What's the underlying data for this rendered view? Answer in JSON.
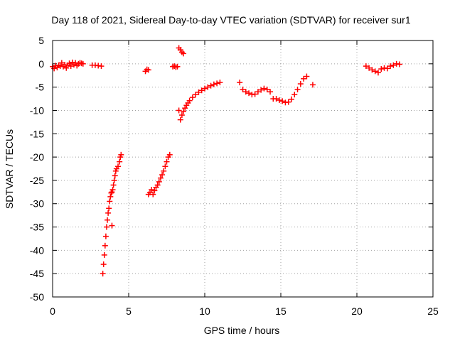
{
  "chart_data": {
    "type": "scatter",
    "title": "Day 118 of 2021, Sidereal Day-to-day VTEC variation (SDTVAR) for receiver sur1",
    "xlabel": "GPS time / hours",
    "ylabel": "SDTVAR / TECUs",
    "xlim": [
      0,
      25
    ],
    "ylim": [
      -50,
      5
    ],
    "xticks": [
      0,
      5,
      10,
      15,
      20,
      25
    ],
    "yticks": [
      5,
      0,
      -5,
      -10,
      -15,
      -20,
      -25,
      -30,
      -35,
      -40,
      -45,
      -50
    ],
    "grid": true,
    "marker": "+",
    "colors": {
      "series": "#ff0000",
      "grid": "#a0a0a0",
      "axis": "#000000"
    },
    "series": [
      {
        "points": [
          [
            0.0,
            -0.6
          ],
          [
            0.1,
            -1.0
          ],
          [
            0.2,
            -0.4
          ],
          [
            0.3,
            -0.8
          ],
          [
            0.4,
            -0.3
          ],
          [
            0.5,
            -0.5
          ],
          [
            0.6,
            0.2
          ],
          [
            0.7,
            -0.6
          ],
          [
            0.8,
            -0.2
          ],
          [
            0.9,
            -0.9
          ],
          [
            1.0,
            -0.3
          ],
          [
            1.1,
            0.1
          ],
          [
            1.2,
            -0.5
          ],
          [
            1.3,
            0.3
          ],
          [
            1.4,
            -0.2
          ],
          [
            1.5,
            0.2
          ],
          [
            1.6,
            -0.4
          ],
          [
            1.7,
            0.0
          ],
          [
            1.8,
            0.2
          ],
          [
            1.9,
            0.1
          ],
          [
            2.0,
            0.0
          ],
          [
            2.6,
            -0.3
          ],
          [
            2.8,
            -0.3
          ],
          [
            3.0,
            -0.4
          ],
          [
            3.2,
            -0.5
          ]
        ]
      },
      {
        "points": [
          [
            3.3,
            -45.0
          ],
          [
            3.35,
            -43.0
          ],
          [
            3.4,
            -41.0
          ],
          [
            3.45,
            -39.0
          ],
          [
            3.5,
            -37.0
          ],
          [
            3.55,
            -35.0
          ],
          [
            3.6,
            -33.5
          ],
          [
            3.65,
            -32.0
          ],
          [
            3.7,
            -31.0
          ],
          [
            3.75,
            -29.5
          ],
          [
            3.8,
            -28.5
          ],
          [
            3.85,
            -27.7
          ],
          [
            3.9,
            -27.5
          ],
          [
            3.95,
            -27.0
          ],
          [
            4.0,
            -26.0
          ],
          [
            4.05,
            -25.0
          ],
          [
            4.1,
            -24.0
          ],
          [
            4.15,
            -23.0
          ],
          [
            4.2,
            -22.5
          ],
          [
            4.3,
            -22.0
          ],
          [
            4.4,
            -21.0
          ],
          [
            4.45,
            -20.0
          ],
          [
            4.5,
            -19.5
          ],
          [
            3.9,
            -34.7
          ]
        ]
      },
      {
        "points": [
          [
            6.1,
            -1.6
          ],
          [
            6.2,
            -1.2
          ],
          [
            6.3,
            -1.3
          ]
        ]
      },
      {
        "points": [
          [
            6.3,
            -28.0
          ],
          [
            6.4,
            -27.6
          ],
          [
            6.5,
            -27.0
          ],
          [
            6.6,
            -28.0
          ],
          [
            6.7,
            -27.2
          ],
          [
            6.8,
            -26.5
          ],
          [
            6.9,
            -26.0
          ],
          [
            7.0,
            -25.3
          ],
          [
            7.1,
            -24.5
          ],
          [
            7.2,
            -23.8
          ],
          [
            7.3,
            -23.0
          ],
          [
            7.4,
            -22.0
          ],
          [
            7.5,
            -21.0
          ],
          [
            7.6,
            -20.0
          ],
          [
            7.7,
            -19.5
          ]
        ]
      },
      {
        "points": [
          [
            7.9,
            -0.6
          ],
          [
            8.0,
            -0.5
          ],
          [
            8.1,
            -0.7
          ],
          [
            8.2,
            -0.6
          ],
          [
            8.3,
            3.4
          ],
          [
            8.4,
            3.0
          ],
          [
            8.5,
            2.5
          ],
          [
            8.6,
            2.2
          ]
        ]
      },
      {
        "points": [
          [
            8.3,
            -10.0
          ],
          [
            8.4,
            -12.0
          ],
          [
            8.5,
            -11.0
          ],
          [
            8.6,
            -10.2
          ],
          [
            8.7,
            -9.5
          ],
          [
            8.8,
            -8.9
          ],
          [
            8.9,
            -8.4
          ],
          [
            9.0,
            -7.9
          ],
          [
            9.2,
            -7.2
          ],
          [
            9.4,
            -6.6
          ],
          [
            9.6,
            -6.1
          ],
          [
            9.8,
            -5.7
          ],
          [
            10.0,
            -5.3
          ],
          [
            10.2,
            -5.0
          ],
          [
            10.4,
            -4.7
          ],
          [
            10.6,
            -4.4
          ],
          [
            10.8,
            -4.2
          ],
          [
            11.0,
            -4.0
          ]
        ]
      },
      {
        "points": [
          [
            12.3,
            -4.0
          ],
          [
            12.5,
            -5.5
          ],
          [
            12.7,
            -6.0
          ],
          [
            12.9,
            -6.3
          ],
          [
            13.1,
            -6.6
          ],
          [
            13.3,
            -6.5
          ],
          [
            13.5,
            -6.0
          ],
          [
            13.7,
            -5.6
          ],
          [
            13.9,
            -5.3
          ],
          [
            14.1,
            -5.5
          ],
          [
            14.3,
            -6.0
          ],
          [
            14.5,
            -7.5
          ],
          [
            14.7,
            -7.5
          ],
          [
            14.9,
            -7.8
          ],
          [
            15.1,
            -8.0
          ],
          [
            15.3,
            -8.3
          ],
          [
            15.5,
            -8.2
          ],
          [
            15.7,
            -7.6
          ],
          [
            15.9,
            -6.6
          ],
          [
            16.1,
            -5.5
          ],
          [
            16.3,
            -4.3
          ],
          [
            16.5,
            -3.2
          ],
          [
            16.7,
            -2.7
          ],
          [
            17.1,
            -4.5
          ]
        ]
      },
      {
        "points": [
          [
            20.6,
            -0.5
          ],
          [
            20.8,
            -0.9
          ],
          [
            21.0,
            -1.3
          ],
          [
            21.2,
            -1.6
          ],
          [
            21.4,
            -1.9
          ],
          [
            21.6,
            -1.1
          ],
          [
            21.8,
            -0.9
          ],
          [
            22.0,
            -1.0
          ],
          [
            22.2,
            -0.5
          ],
          [
            22.4,
            -0.3
          ],
          [
            22.6,
            0.0
          ],
          [
            22.8,
            -0.1
          ]
        ]
      }
    ]
  }
}
